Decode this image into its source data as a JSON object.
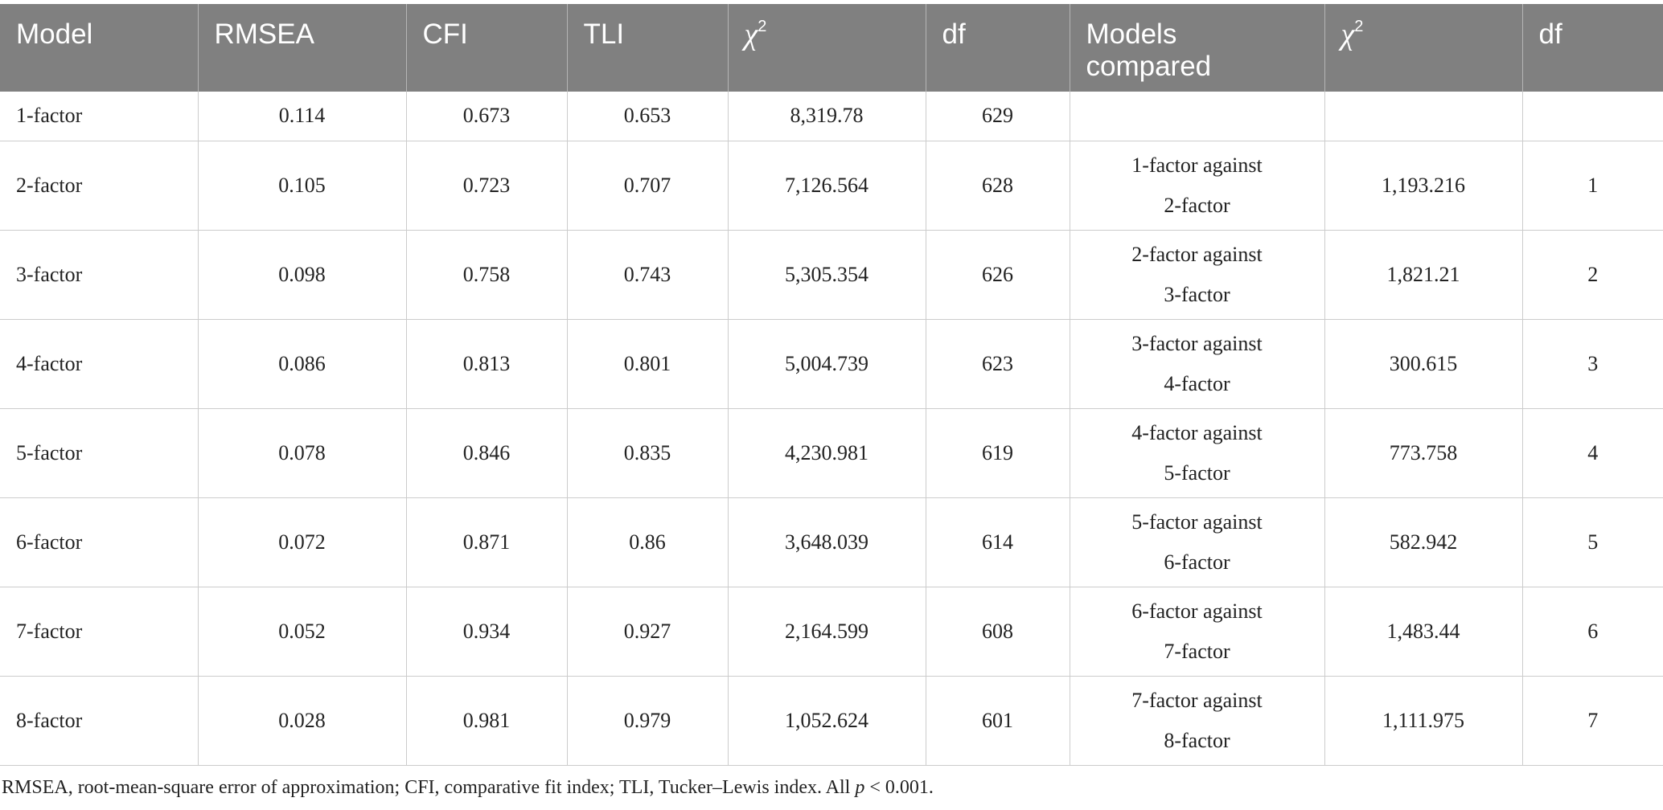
{
  "table": {
    "headers": [
      "Model",
      "RMSEA",
      "CFI",
      "TLI",
      "χ2",
      "df",
      "Models compared",
      "χ2",
      "df"
    ],
    "rows": [
      {
        "model": "1-factor",
        "rmsea": "0.114",
        "cfi": "0.673",
        "tli": "0.653",
        "chi2": "8,319.78",
        "df": "629",
        "compared_line1": "",
        "compared_line2": "",
        "delta_chi2": "",
        "delta_df": ""
      },
      {
        "model": "2-factor",
        "rmsea": "0.105",
        "cfi": "0.723",
        "tli": "0.707",
        "chi2": "7,126.564",
        "df": "628",
        "compared_line1": "1-factor against",
        "compared_line2": "2-factor",
        "delta_chi2": "1,193.216",
        "delta_df": "1"
      },
      {
        "model": "3-factor",
        "rmsea": "0.098",
        "cfi": "0.758",
        "tli": "0.743",
        "chi2": "5,305.354",
        "df": "626",
        "compared_line1": "2-factor against",
        "compared_line2": "3-factor",
        "delta_chi2": "1,821.21",
        "delta_df": "2"
      },
      {
        "model": "4-factor",
        "rmsea": "0.086",
        "cfi": "0.813",
        "tli": "0.801",
        "chi2": "5,004.739",
        "df": "623",
        "compared_line1": "3-factor against",
        "compared_line2": "4-factor",
        "delta_chi2": "300.615",
        "delta_df": "3"
      },
      {
        "model": "5-factor",
        "rmsea": "0.078",
        "cfi": "0.846",
        "tli": "0.835",
        "chi2": "4,230.981",
        "df": "619",
        "compared_line1": "4-factor against",
        "compared_line2": "5-factor",
        "delta_chi2": "773.758",
        "delta_df": "4"
      },
      {
        "model": "6-factor",
        "rmsea": "0.072",
        "cfi": "0.871",
        "tli": "0.86",
        "chi2": "3,648.039",
        "df": "614",
        "compared_line1": "5-factor against",
        "compared_line2": "6-factor",
        "delta_chi2": "582.942",
        "delta_df": "5"
      },
      {
        "model": "7-factor",
        "rmsea": "0.052",
        "cfi": "0.934",
        "tli": "0.927",
        "chi2": "2,164.599",
        "df": "608",
        "compared_line1": "6-factor against",
        "compared_line2": "7-factor",
        "delta_chi2": "1,483.44",
        "delta_df": "6"
      },
      {
        "model": "8-factor",
        "rmsea": "0.028",
        "cfi": "0.981",
        "tli": "0.979",
        "chi2": "1,052.624",
        "df": "601",
        "compared_line1": "7-factor against",
        "compared_line2": "8-factor",
        "delta_chi2": "1,111.975",
        "delta_df": "7"
      }
    ]
  },
  "footnote": {
    "text": "RMSEA, root-mean-square error of approximation; CFI, comparative fit index; TLI, Tucker–Lewis index. All ",
    "p_symbol": "p",
    "p_condition": " < 0.001."
  },
  "colors": {
    "header_background": "#808080",
    "header_text": "#ffffff",
    "grid_line": "#cccccc",
    "body_text": "#222222"
  }
}
